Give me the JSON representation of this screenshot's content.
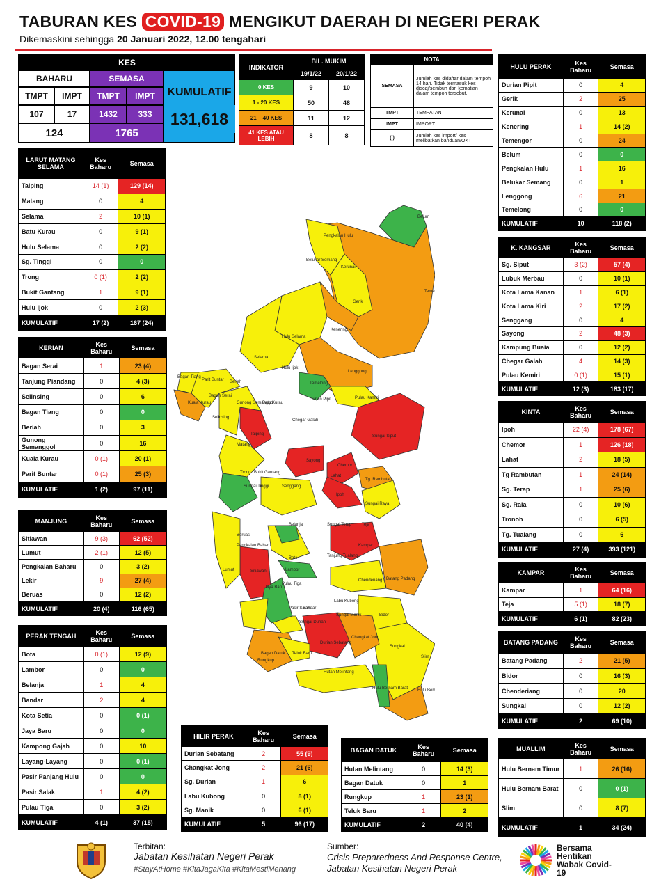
{
  "title_pre": "TABURAN KES ",
  "title_hl": "COVID-19",
  "title_post": " MENGIKUT DAERAH DI NEGERI PERAK",
  "subtitle_pre": "Dikemaskini sehingga ",
  "subtitle_b": "20 Januari 2022, 12.00 tengahari",
  "kes": {
    "header": "KES",
    "baharu": "BAHARU",
    "semasa": "SEMASA",
    "kumulatif": "KUMULATIF",
    "tmpt": "TMPT",
    "impt": "IMPT",
    "b_tmpt": "107",
    "b_impt": "17",
    "s_tmpt": "1432",
    "s_impt": "333",
    "b_total": "124",
    "s_total": "1765",
    "kum_total": "131,618"
  },
  "indicator": {
    "h1": "INDIKATOR",
    "h2": "BIL. MUKIM",
    "d1": "19/1/22",
    "d2": "20/1/22",
    "rows": [
      {
        "label": "0 KES",
        "a": "9",
        "b": "10"
      },
      {
        "label": "1 - 20 KES",
        "a": "50",
        "b": "48"
      },
      {
        "label": "21 – 40 KES",
        "a": "11",
        "b": "12"
      },
      {
        "label": "41 KES ATAU LEBIH",
        "a": "8",
        "b": "8"
      }
    ]
  },
  "nota": {
    "h": "NOTA",
    "rows": [
      {
        "k": "SEMASA",
        "v": "Jumlah kes didaftar dalam tempoh 14 hari. Tidak termasuk kes discaj/sembuh dan kematian dalam tempoh tersebut."
      },
      {
        "k": "TMPT",
        "v": "TEMPATAN"
      },
      {
        "k": "IMPT",
        "v": "IMPORT"
      },
      {
        "k": "( )",
        "v": "Jumlah kes import/ kes melibatkan banduan/OKT"
      }
    ]
  },
  "col_kb": "Kes Baharu",
  "col_s": "Semasa",
  "kumulatif": "KUMULATIF",
  "districts": {
    "larut": {
      "name": "LARUT MATANG SELAMA",
      "rows": [
        [
          "Taiping",
          "14 (1)",
          "129 (14)",
          "r",
          "red"
        ],
        [
          "Matang",
          "0",
          "4",
          "y",
          ""
        ],
        [
          "Selama",
          "2",
          "10 (1)",
          "y",
          "red"
        ],
        [
          "Batu Kurau",
          "0",
          "9 (1)",
          "y",
          ""
        ],
        [
          "Hulu Selama",
          "0",
          "2 (2)",
          "y",
          ""
        ],
        [
          "Sg. Tinggi",
          "0",
          "0",
          "g",
          ""
        ],
        [
          "Trong",
          "0 (1)",
          "2 (2)",
          "y",
          "red"
        ],
        [
          "Bukit Gantang",
          "1",
          "9 (1)",
          "y",
          "red"
        ],
        [
          "Hulu Ijok",
          "0",
          "2 (3)",
          "y",
          ""
        ]
      ],
      "cum": [
        "17 (2)",
        "167 (24)"
      ]
    },
    "kerian": {
      "name": "KERIAN",
      "rows": [
        [
          "Bagan Serai",
          "1",
          "23 (4)",
          "o",
          "red"
        ],
        [
          "Tanjung Piandang",
          "0",
          "4 (3)",
          "y",
          ""
        ],
        [
          "Selinsing",
          "0",
          "6",
          "y",
          ""
        ],
        [
          "Bagan Tiang",
          "0",
          "0",
          "g",
          ""
        ],
        [
          "Beriah",
          "0",
          "3",
          "y",
          ""
        ],
        [
          "Gunong Semanggol",
          "0",
          "16",
          "y",
          ""
        ],
        [
          "Kuala Kurau",
          "0 (1)",
          "20 (1)",
          "y",
          "red"
        ],
        [
          "Parit Buntar",
          "0 (1)",
          "25 (3)",
          "o",
          "red"
        ]
      ],
      "cum": [
        "1 (2)",
        "97 (11)"
      ]
    },
    "manjung": {
      "name": "MANJUNG",
      "rows": [
        [
          "Sitiawan",
          "9 (3)",
          "62 (52)",
          "r",
          "red"
        ],
        [
          "Lumut",
          "2 (1)",
          "12 (5)",
          "y",
          "red"
        ],
        [
          "Pengkalan Baharu",
          "0",
          "3 (2)",
          "y",
          ""
        ],
        [
          "Lekir",
          "9",
          "27 (4)",
          "o",
          "red"
        ],
        [
          "Beruas",
          "0",
          "12 (2)",
          "y",
          ""
        ]
      ],
      "cum": [
        "20 (4)",
        "116 (65)"
      ]
    },
    "perak_tengah": {
      "name": "PERAK TENGAH",
      "rows": [
        [
          "Bota",
          "0 (1)",
          "12 (9)",
          "y",
          "red"
        ],
        [
          "Lambor",
          "0",
          "0",
          "g",
          ""
        ],
        [
          "Belanja",
          "1",
          "4",
          "y",
          "red"
        ],
        [
          "Bandar",
          "2",
          "4",
          "y",
          "red"
        ],
        [
          "Kota Setia",
          "0",
          "0 (1)",
          "g",
          ""
        ],
        [
          "Jaya Baru",
          "0",
          "0",
          "g",
          ""
        ],
        [
          "Kampong Gajah",
          "0",
          "10",
          "y",
          ""
        ],
        [
          "Layang-Layang",
          "0",
          "0 (1)",
          "g",
          ""
        ],
        [
          "Pasir Panjang Hulu",
          "0",
          "0",
          "g",
          ""
        ],
        [
          "Pasir Salak",
          "1",
          "4 (2)",
          "y",
          "red"
        ],
        [
          "Pulau Tiga",
          "0",
          "3 (2)",
          "y",
          ""
        ]
      ],
      "cum": [
        "4 (1)",
        "37 (15)"
      ]
    },
    "hilir_perak": {
      "name": "HILIR PERAK",
      "rows": [
        [
          "Durian Sebatang",
          "2",
          "55 (9)",
          "r",
          "red"
        ],
        [
          "Changkat Jong",
          "2",
          "21 (6)",
          "o",
          "red"
        ],
        [
          "Sg. Durian",
          "1",
          "6",
          "y",
          "red"
        ],
        [
          "Labu Kubong",
          "0",
          "8 (1)",
          "y",
          ""
        ],
        [
          "Sg. Manik",
          "0",
          "6 (1)",
          "y",
          ""
        ]
      ],
      "cum": [
        "5",
        "96 (17)"
      ]
    },
    "bagan_datuk": {
      "name": "BAGAN DATUK",
      "rows": [
        [
          "Hutan Melintang",
          "0",
          "14 (3)",
          "y",
          ""
        ],
        [
          "Bagan Datuk",
          "0",
          "1",
          "y",
          ""
        ],
        [
          "Rungkup",
          "1",
          "23 (1)",
          "o",
          "red"
        ],
        [
          "Teluk Baru",
          "1",
          "2",
          "y",
          "red"
        ]
      ],
      "cum": [
        "2",
        "40 (4)"
      ]
    },
    "hulu_perak": {
      "name": "HULU PERAK",
      "rows": [
        [
          "Durian Pipit",
          "0",
          "4",
          "y",
          ""
        ],
        [
          "Gerik",
          "2",
          "25",
          "o",
          "red"
        ],
        [
          "Kerunai",
          "0",
          "13",
          "y",
          ""
        ],
        [
          "Kenering",
          "1",
          "14 (2)",
          "y",
          "red"
        ],
        [
          "Temengor",
          "0",
          "24",
          "o",
          ""
        ],
        [
          "Belum",
          "0",
          "0",
          "g",
          ""
        ],
        [
          "Pengkalan Hulu",
          "1",
          "16",
          "y",
          "red"
        ],
        [
          "Belukar Semang",
          "0",
          "1",
          "y",
          ""
        ],
        [
          "Lenggong",
          "6",
          "21",
          "o",
          "red"
        ],
        [
          "Temelong",
          "0",
          "0",
          "g",
          ""
        ]
      ],
      "cum": [
        "10",
        "118 (2)"
      ]
    },
    "kkangsar": {
      "name": "K. KANGSAR",
      "rows": [
        [
          "Sg. Siput",
          "3 (2)",
          "57 (4)",
          "r",
          "red"
        ],
        [
          "Lubuk Merbau",
          "0",
          "10 (1)",
          "y",
          ""
        ],
        [
          "Kota Lama Kanan",
          "1",
          "6 (1)",
          "y",
          "red"
        ],
        [
          "Kota Lama Kiri",
          "2",
          "17 (2)",
          "y",
          "red"
        ],
        [
          "Senggang",
          "0",
          "4",
          "y",
          ""
        ],
        [
          "Sayong",
          "2",
          "48 (3)",
          "r",
          "red"
        ],
        [
          "Kampung Buaia",
          "0",
          "12 (2)",
          "y",
          ""
        ],
        [
          "Chegar Galah",
          "4",
          "14 (3)",
          "y",
          "red"
        ],
        [
          "Pulau Kemiri",
          "0 (1)",
          "15 (1)",
          "y",
          "red"
        ]
      ],
      "cum": [
        "12 (3)",
        "183 (17)"
      ]
    },
    "kinta": {
      "name": "KINTA",
      "rows": [
        [
          "Ipoh",
          "22 (4)",
          "178 (67)",
          "r",
          "red"
        ],
        [
          "Chemor",
          "1",
          "126 (18)",
          "r",
          "red"
        ],
        [
          "Lahat",
          "2",
          "18 (5)",
          "y",
          "red"
        ],
        [
          "Tg Rambutan",
          "1",
          "24 (14)",
          "o",
          "red"
        ],
        [
          "Sg. Terap",
          "1",
          "25 (6)",
          "o",
          "red"
        ],
        [
          "Sg. Raia",
          "0",
          "10 (6)",
          "y",
          ""
        ],
        [
          "Tronoh",
          "0",
          "6 (5)",
          "y",
          ""
        ],
        [
          "Tg. Tualang",
          "0",
          "6",
          "y",
          ""
        ]
      ],
      "cum": [
        "27 (4)",
        "393 (121)"
      ]
    },
    "kampar": {
      "name": "KAMPAR",
      "rows": [
        [
          "Kampar",
          "1",
          "64 (16)",
          "r",
          "red"
        ],
        [
          "Teja",
          "5 (1)",
          "18 (7)",
          "y",
          "red"
        ]
      ],
      "cum": [
        "6 (1)",
        "82 (23)"
      ]
    },
    "batang": {
      "name": "BATANG PADANG",
      "rows": [
        [
          "Batang Padang",
          "2",
          "21 (5)",
          "o",
          "red"
        ],
        [
          "Bidor",
          "0",
          "16 (3)",
          "y",
          ""
        ],
        [
          "Chenderiang",
          "0",
          "20",
          "y",
          ""
        ],
        [
          "Sungkai",
          "0",
          "12 (2)",
          "y",
          ""
        ]
      ],
      "cum": [
        "2",
        "69 (10)"
      ]
    },
    "muallim": {
      "name": "MUALLIM",
      "rows": [
        [
          "Hulu Bernam Timur",
          "1",
          "26 (16)",
          "o",
          "red"
        ],
        [
          "Hulu Bernam Barat",
          "0",
          "0 (1)",
          "g",
          ""
        ],
        [
          "Slim",
          "0",
          "8 (7)",
          "y",
          ""
        ]
      ],
      "cum": [
        "1",
        "34 (24)"
      ]
    }
  },
  "map_labels": [
    "Belum",
    "Pengkalan Hulu",
    "Belukar Semang",
    "Kerunai",
    "Gerik",
    "Temengor",
    "Kenering",
    "Hulu Selama",
    "Selama",
    "Hulu Ijok",
    "Lenggong",
    "Temelong",
    "Durian Pipit",
    "Pulau Kamiri",
    "Bagan Tiang",
    "Parit Buntar",
    "Kuala Kurau",
    "Bagan Serai",
    "Beriah",
    "Gunong Semanggol",
    "Batu Kurau",
    "Chegar Galah",
    "Taiping",
    "Matang",
    "Sungai Siput",
    "Sayong",
    "Chemor",
    "Tg. Rambutan",
    "Ipoh",
    "Senggang",
    "Sungai Tinggi",
    "Kampar",
    "Teja",
    "Sitiawan",
    "Lumut",
    "Beruas",
    "Belanja",
    "Bota",
    "Lambor",
    "Pasir Salak",
    "Chenderiang",
    "Batang Padang",
    "Bidor",
    "Sungkai",
    "Slim",
    "Durian Sebatang",
    "Changkat Jong",
    "Rungkup",
    "Bagan Datuk",
    "Teluk Baru",
    "Hutan Melintang",
    "Hulu Bernam Timor",
    "Hulu Bernam Barat",
    "Jaya Baru",
    "Trong",
    "Bukit Gantang",
    "Selinsing",
    "Pengkalan Baharu",
    "Lahat",
    "Sungai Raya",
    "Sungai Terap",
    "Tanjung Tualang",
    "Pulau Tiga",
    "Labu Kubong",
    "Sungai Manik",
    "Sungai Durian",
    "Bandar"
  ],
  "footer": {
    "terbitan": "Terbitan:",
    "org": "Jabatan Kesihatan Negeri Perak",
    "tags": "#StayAtHome #KitaJagaKita #KitaMestiMenang",
    "sumber": "Sumber:",
    "src1": "Crisis Preparedness And Response Centre,",
    "src2": "Jabatan Kesihatan Negeri Perak",
    "logo_text": "Bersama Hentikan Wabak Covid-19"
  },
  "colors": {
    "green": "#3db34a",
    "yellow": "#f7f00a",
    "orange": "#f39c12",
    "red": "#e52424",
    "purple": "#7b32b5",
    "blue": "#1aa7e8"
  }
}
